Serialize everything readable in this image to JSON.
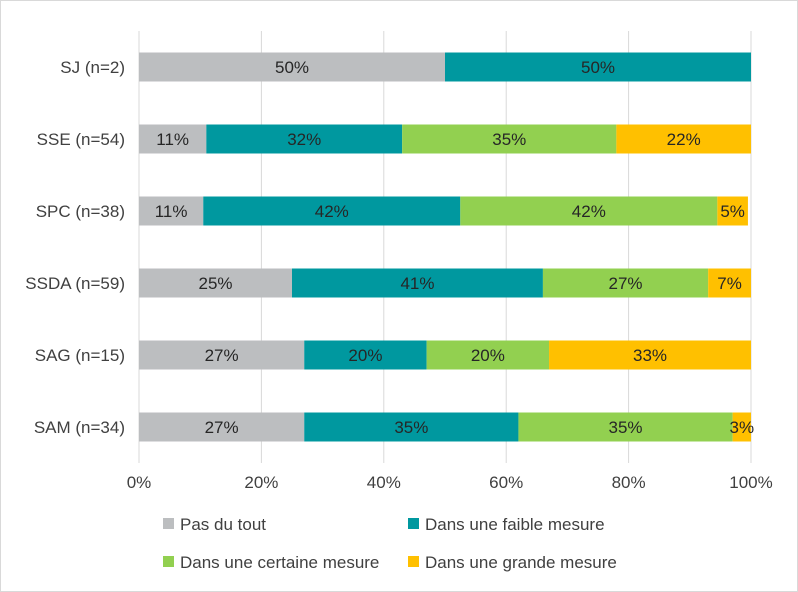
{
  "chart_data": {
    "type": "bar",
    "orientation": "horizontal",
    "stacked": "percent",
    "title": "",
    "xlabel": "",
    "ylabel": "",
    "xlim": [
      0,
      100
    ],
    "grid": true,
    "legend_position": "bottom",
    "categories": [
      "SJ (n=2)",
      "SSE (n=54)",
      "SPC (n=38)",
      "SSDA (n=59)",
      "SAG (n=15)",
      "SAM (n=34)"
    ],
    "x_ticks": [
      "0%",
      "20%",
      "40%",
      "60%",
      "80%",
      "100%"
    ],
    "series": [
      {
        "name": "Pas du tout",
        "color": "#bcbec0",
        "values": [
          50,
          11,
          10.5,
          25,
          27,
          27
        ],
        "labels": [
          "50%",
          "11%",
          "11%",
          "25%",
          "27%",
          "27%"
        ]
      },
      {
        "name": "Dans une faible mesure",
        "color": "#00989f",
        "values": [
          50,
          32,
          42,
          41,
          20,
          35
        ],
        "labels": [
          "50%",
          "32%",
          "42%",
          "41%",
          "20%",
          "35%"
        ]
      },
      {
        "name": "Dans une certaine mesure",
        "color": "#92d050",
        "values": [
          0,
          35,
          42,
          27,
          20,
          35
        ],
        "labels": [
          "",
          "35%",
          "42%",
          "27%",
          "20%",
          "35%"
        ]
      },
      {
        "name": "Dans une grande mesure",
        "color": "#ffc000",
        "values": [
          0,
          22,
          5,
          7,
          33,
          3
        ],
        "labels": [
          "",
          "22%",
          "5%",
          "7%",
          "33%",
          "3%"
        ]
      }
    ]
  }
}
